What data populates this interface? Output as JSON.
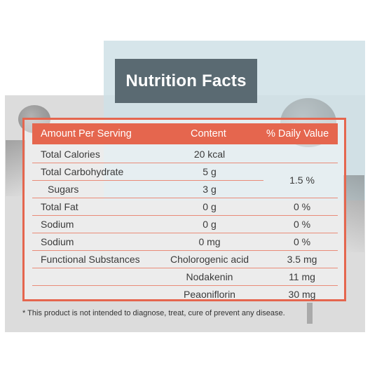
{
  "title": "Nutrition Facts",
  "table": {
    "headers": [
      "Amount Per Serving",
      "Content",
      "% Daily Value"
    ],
    "rows": [
      {
        "name": "Total Calories",
        "content": "20 kcal",
        "daily": ""
      },
      {
        "name": "Total Carbohydrate",
        "content": "5 g",
        "daily": ""
      },
      {
        "name": "Sugars",
        "content": "3 g",
        "daily": ""
      },
      {
        "name": "Total Fat",
        "content": "0 g",
        "daily": "0 %"
      },
      {
        "name": "Sodium",
        "content": "0 g",
        "daily": "0 %"
      },
      {
        "name": "Sodium",
        "content": "0 mg",
        "daily": "0 %"
      },
      {
        "name": "Functional Substances",
        "content": "Cholorogenic acid",
        "daily": "3.5 mg"
      },
      {
        "name": "",
        "content": "Nodakenin",
        "daily": "11 mg"
      },
      {
        "name": "",
        "content": "Peaoniflorin",
        "daily": "30 mg"
      }
    ],
    "carb_sugar_daily": "1.5 %"
  },
  "footnote": "* This product is not intended to diagnose, treat, cure of prevent any disease.",
  "colors": {
    "accent": "#e5664e",
    "title_bg": "#5a6a72",
    "panel_blue": "#cfe0e6",
    "panel_gray": "#dcdcdc"
  }
}
